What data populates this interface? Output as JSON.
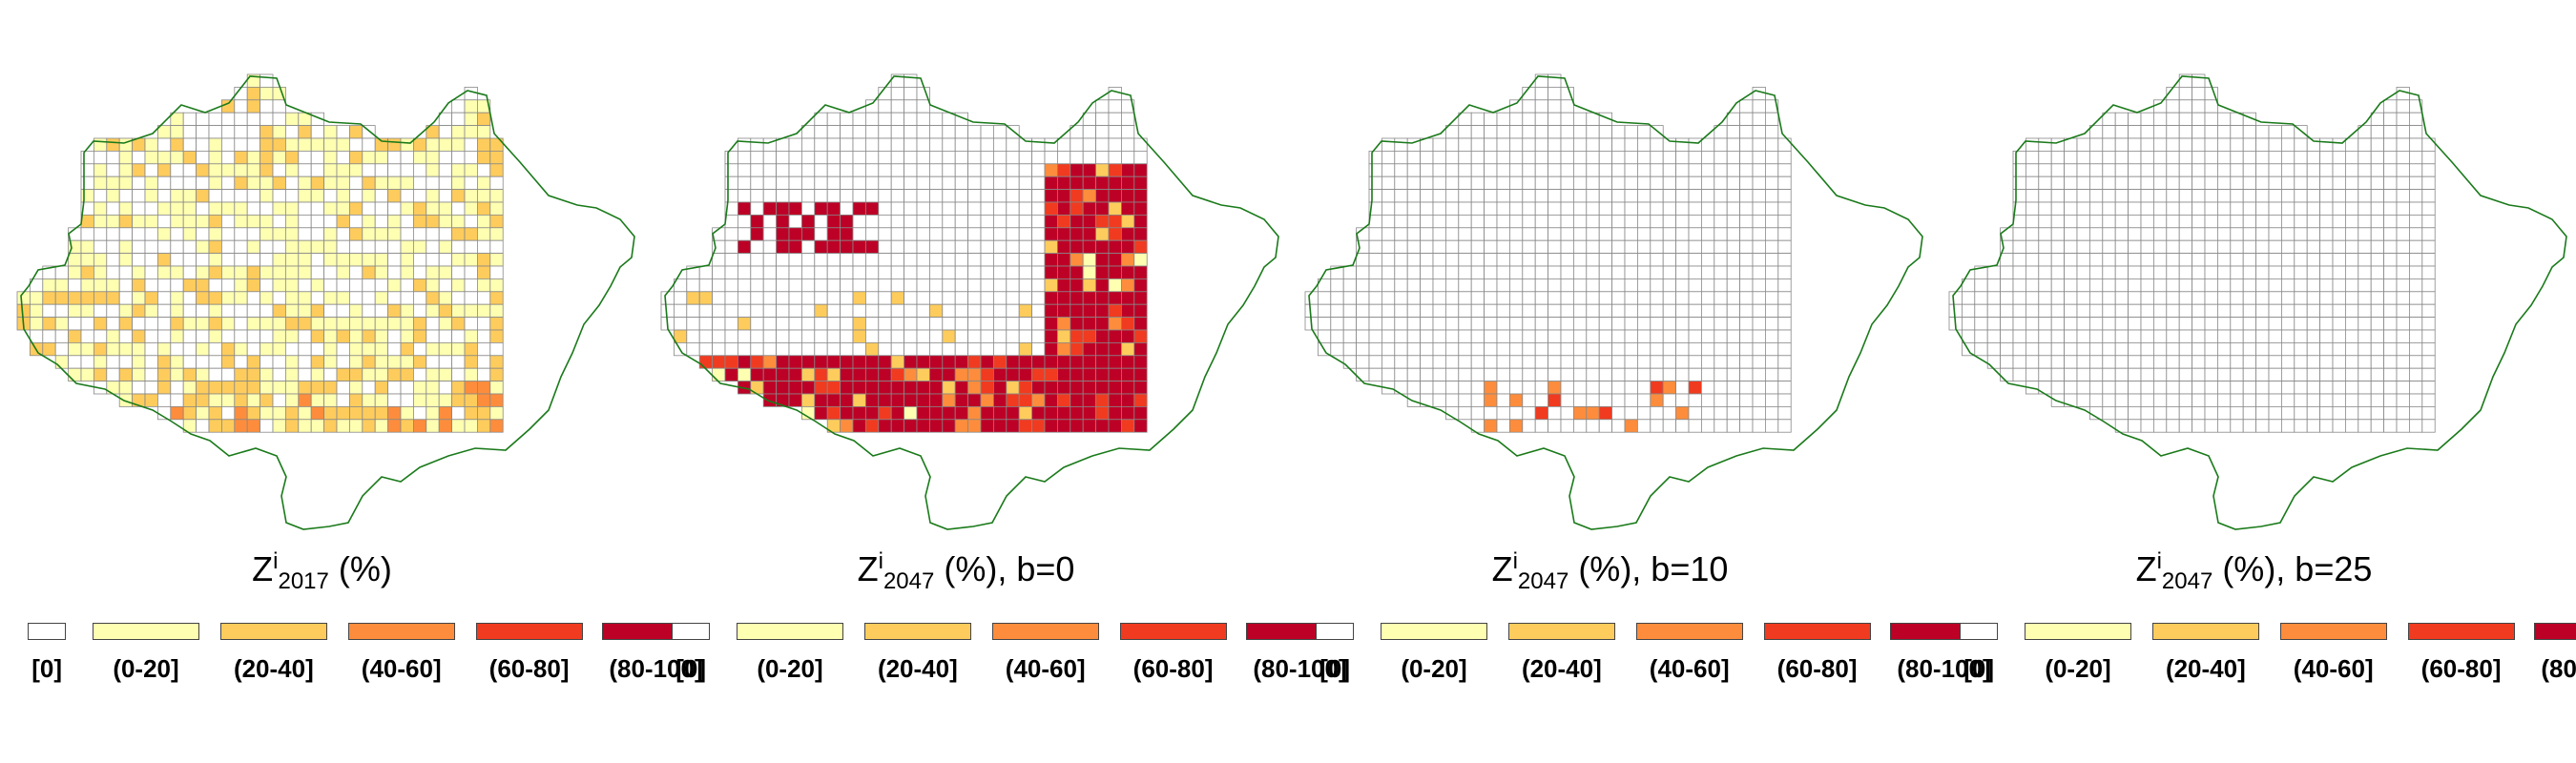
{
  "legend": {
    "classes": [
      {
        "label": "[0]",
        "color": "#ffffff"
      },
      {
        "label": "(0-20]",
        "color": "#ffffb2"
      },
      {
        "label": "(20-40]",
        "color": "#fecc5c"
      },
      {
        "label": "(40-60]",
        "color": "#fd8d3c"
      },
      {
        "label": "(60-80]",
        "color": "#f03b20"
      },
      {
        "label": "(80-100]",
        "color": "#bd0026"
      }
    ]
  },
  "panels": [
    {
      "title": {
        "var": "Z",
        "sup": "i",
        "sub": "2017",
        "rest": " (%)"
      }
    },
    {
      "title": {
        "var": "Z",
        "sup": "i",
        "sub": "2047",
        "rest": " (%), b=0"
      }
    },
    {
      "title": {
        "var": "Z",
        "sup": "i",
        "sub": "2047",
        "rest": " (%), b=10"
      }
    },
    {
      "title": {
        "var": "Z",
        "sup": "i",
        "sub": "2047",
        "rest": " (%), b=25"
      }
    }
  ],
  "map_style": {
    "grid_line": "#888888",
    "boundary": "#1a7a1a"
  }
}
